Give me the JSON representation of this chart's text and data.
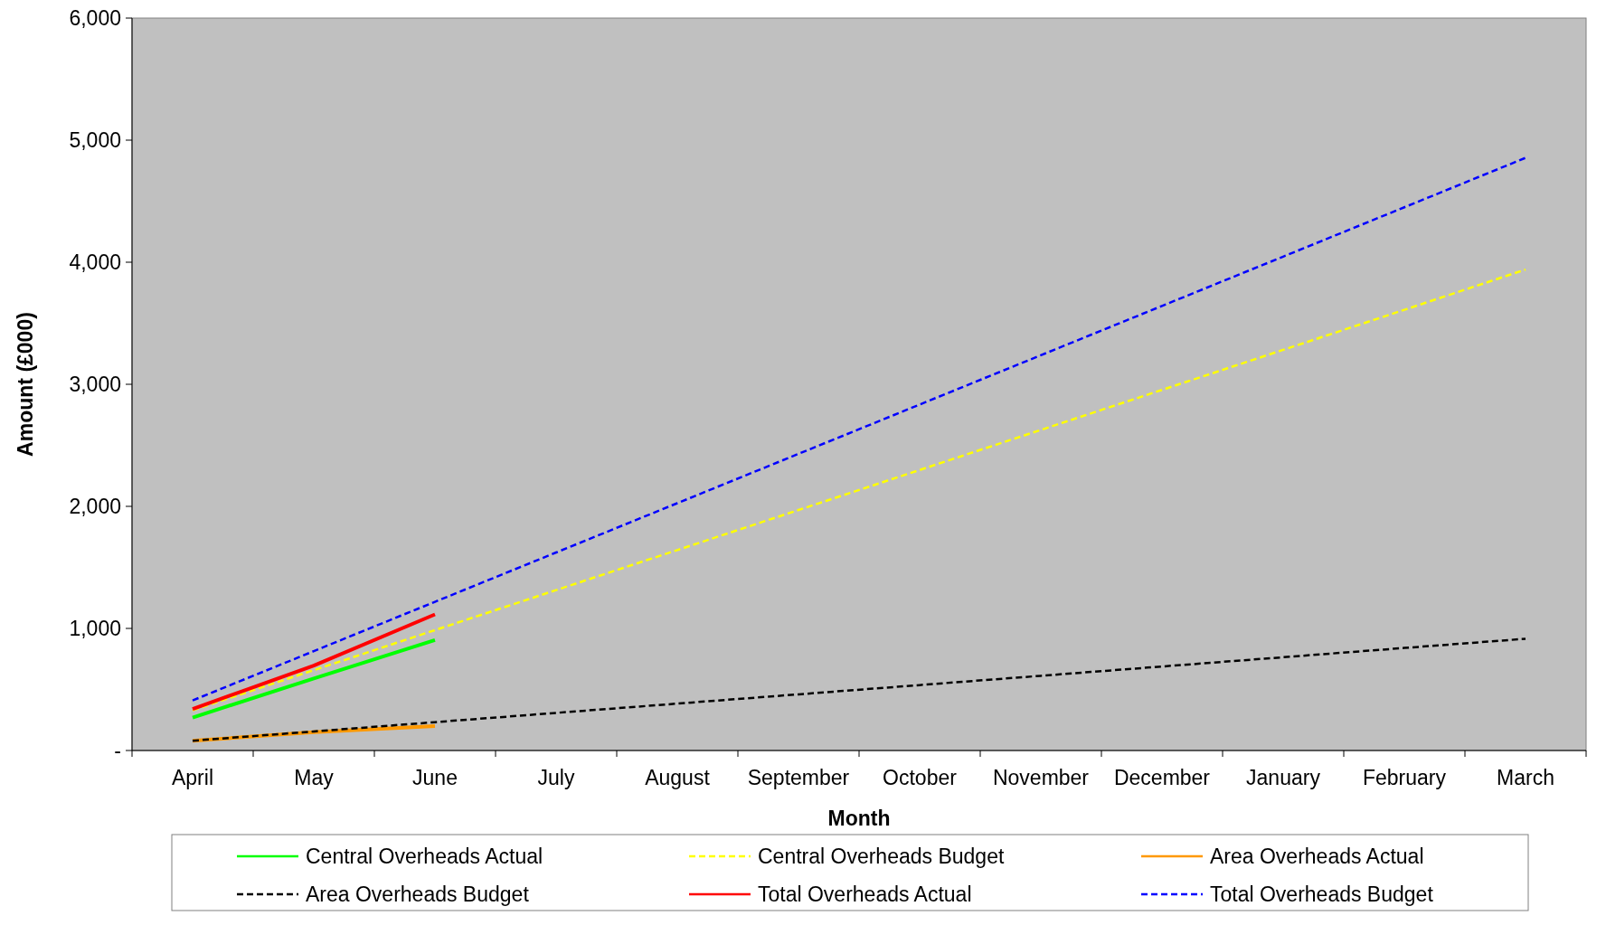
{
  "chart_data": {
    "type": "line",
    "xlabel": "Month",
    "ylabel": "Amount (£000)",
    "categories": [
      "April",
      "May",
      "June",
      "July",
      "August",
      "September",
      "October",
      "November",
      "December",
      "January",
      "February",
      "March"
    ],
    "ylim": [
      0,
      6000
    ],
    "yticks": [
      {
        "value": 0,
        "label": "-"
      },
      {
        "value": 1000,
        "label": "1,000"
      },
      {
        "value": 2000,
        "label": "2,000"
      },
      {
        "value": 3000,
        "label": "3,000"
      },
      {
        "value": 4000,
        "label": "4,000"
      },
      {
        "value": 5000,
        "label": "5,000"
      },
      {
        "value": 6000,
        "label": "6,000"
      }
    ],
    "grid": false,
    "legend": "bottom",
    "series": [
      {
        "name": "Central Overheads Actual",
        "color": "#00ff00",
        "line_style": "solid",
        "values": [
          270,
          590,
          905,
          null,
          null,
          null,
          null,
          null,
          null,
          null,
          null,
          null
        ]
      },
      {
        "name": "Central Overheads Budget",
        "color": "#ffff00",
        "line_style": "dashed",
        "values": [
          330,
          658,
          986,
          1314,
          1642,
          1970,
          2298,
          2626,
          2954,
          3282,
          3610,
          3940
        ]
      },
      {
        "name": "Area Overheads Actual",
        "color": "#ff9900",
        "line_style": "solid",
        "values": [
          80,
          150,
          200,
          null,
          null,
          null,
          null,
          null,
          null,
          null,
          null,
          null
        ]
      },
      {
        "name": "Area Overheads Budget",
        "color": "#000000",
        "line_style": "dashed",
        "values": [
          80,
          156,
          232,
          308,
          384,
          460,
          536,
          612,
          688,
          764,
          840,
          915
        ]
      },
      {
        "name": "Total Overheads Actual",
        "color": "#ff0000",
        "line_style": "solid",
        "values": [
          340,
          695,
          1115,
          null,
          null,
          null,
          null,
          null,
          null,
          null,
          null,
          null
        ]
      },
      {
        "name": "Total Overheads Budget",
        "color": "#0000ff",
        "line_style": "dashed",
        "values": [
          410,
          814,
          1218,
          1622,
          2026,
          2430,
          2834,
          3238,
          3642,
          4046,
          4450,
          4855
        ]
      }
    ]
  }
}
